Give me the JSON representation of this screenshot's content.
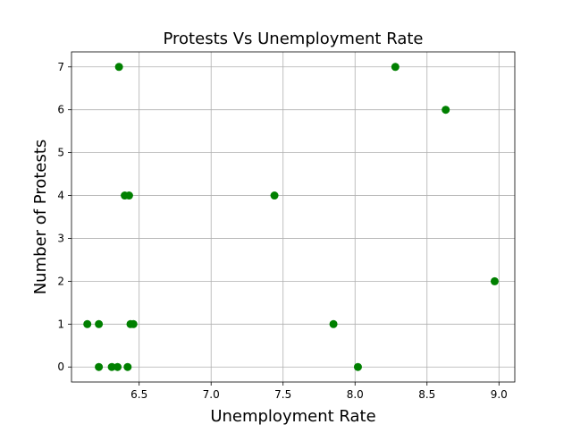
{
  "chart_data": {
    "type": "scatter",
    "title": "Protests Vs Unemployment Rate",
    "xlabel": "Unemployment Rate",
    "ylabel": "Number of Protests",
    "xlim": [
      6.03,
      9.11
    ],
    "ylim": [
      -0.35,
      7.35
    ],
    "xticks": [
      6.5,
      7.0,
      7.5,
      8.0,
      8.5,
      9.0
    ],
    "xtick_labels": [
      "6.5",
      "7.0",
      "7.5",
      "8.0",
      "8.5",
      "9.0"
    ],
    "yticks": [
      0,
      1,
      2,
      3,
      4,
      5,
      6,
      7
    ],
    "ytick_labels": [
      "0",
      "1",
      "2",
      "3",
      "4",
      "5",
      "6",
      "7"
    ],
    "grid": true,
    "marker_color": "#008000",
    "series": [
      {
        "points": [
          {
            "x": 6.36,
            "y": 7
          },
          {
            "x": 6.4,
            "y": 4
          },
          {
            "x": 6.43,
            "y": 4
          },
          {
            "x": 6.14,
            "y": 1
          },
          {
            "x": 6.22,
            "y": 1
          },
          {
            "x": 6.44,
            "y": 1
          },
          {
            "x": 6.46,
            "y": 1
          },
          {
            "x": 6.22,
            "y": 0
          },
          {
            "x": 6.31,
            "y": 0
          },
          {
            "x": 6.35,
            "y": 0
          },
          {
            "x": 6.42,
            "y": 0
          },
          {
            "x": 7.44,
            "y": 4
          },
          {
            "x": 7.85,
            "y": 1
          },
          {
            "x": 8.02,
            "y": 0
          },
          {
            "x": 8.28,
            "y": 7
          },
          {
            "x": 8.63,
            "y": 6
          },
          {
            "x": 8.97,
            "y": 2
          }
        ]
      }
    ]
  }
}
